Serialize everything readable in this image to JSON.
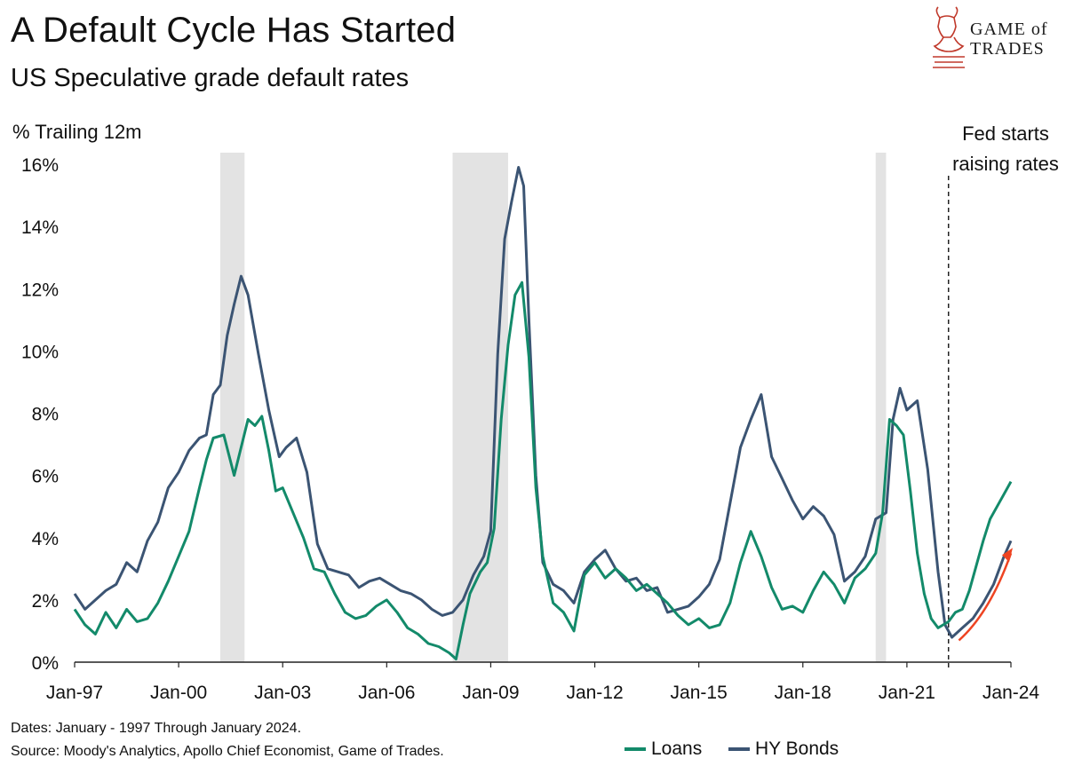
{
  "header": {
    "title": "A Default Cycle Has Started",
    "subtitle": "US Speculative grade default rates"
  },
  "logo": {
    "line1": "GAME of",
    "line2": "TRADES",
    "color": "#c0392b"
  },
  "annotation": {
    "line1": "Fed starts",
    "line2": "raising rates"
  },
  "footer": {
    "dates": "Dates: January - 1997 Through January 2024.",
    "source": "Source: Moody's Analytics, Apollo Chief Economist, Game of Trades."
  },
  "colors": {
    "loans": "#138a6a",
    "hy_bonds": "#3b5473",
    "recession": "#e3e3e3",
    "arrow": "#ee4422"
  },
  "chart_data": {
    "type": "line",
    "title": "A Default Cycle Has Started",
    "subtitle": "US Speculative grade default rates",
    "ylabel": "% Trailing 12m",
    "xlim": [
      1997.0,
      2024.0
    ],
    "ylim": [
      0,
      16
    ],
    "y_ticks": [
      "0%",
      "2%",
      "4%",
      "6%",
      "8%",
      "10%",
      "12%",
      "14%",
      "16%"
    ],
    "x_ticks": [
      "Jan-97",
      "Jan-00",
      "Jan-03",
      "Jan-06",
      "Jan-09",
      "Jan-12",
      "Jan-15",
      "Jan-18",
      "Jan-21",
      "Jan-24"
    ],
    "legend": {
      "position": "bottom-right",
      "entries": [
        "Loans",
        "HY Bonds"
      ]
    },
    "grid": false,
    "recessions": [
      [
        2001.2,
        2001.9
      ],
      [
        2007.9,
        2009.5
      ],
      [
        2020.1,
        2020.4
      ]
    ],
    "fed_start": 2022.2,
    "series": [
      {
        "name": "Loans",
        "x": [
          1997.0,
          1997.3,
          1997.6,
          1997.9,
          1998.2,
          1998.5,
          1998.8,
          1999.1,
          1999.4,
          1999.7,
          2000.0,
          2000.3,
          2000.6,
          2000.8,
          2001.0,
          2001.3,
          2001.6,
          2001.8,
          2002.0,
          2002.2,
          2002.4,
          2002.6,
          2002.8,
          2003.0,
          2003.3,
          2003.6,
          2003.9,
          2004.2,
          2004.5,
          2004.8,
          2005.1,
          2005.4,
          2005.7,
          2006.0,
          2006.3,
          2006.6,
          2006.9,
          2007.2,
          2007.5,
          2007.8,
          2008.0,
          2008.2,
          2008.4,
          2008.7,
          2008.9,
          2009.1,
          2009.3,
          2009.5,
          2009.7,
          2009.9,
          2010.1,
          2010.3,
          2010.5,
          2010.8,
          2011.1,
          2011.4,
          2011.7,
          2012.0,
          2012.3,
          2012.6,
          2012.9,
          2013.2,
          2013.5,
          2013.8,
          2014.1,
          2014.4,
          2014.7,
          2015.0,
          2015.3,
          2015.6,
          2015.9,
          2016.2,
          2016.5,
          2016.8,
          2017.1,
          2017.4,
          2017.7,
          2018.0,
          2018.3,
          2018.6,
          2018.9,
          2019.2,
          2019.5,
          2019.8,
          2020.1,
          2020.3,
          2020.5,
          2020.7,
          2020.9,
          2021.1,
          2021.3,
          2021.5,
          2021.7,
          2021.9,
          2022.2,
          2022.4,
          2022.6,
          2022.8,
          2023.0,
          2023.2,
          2023.4,
          2023.6,
          2023.8,
          2024.0
        ],
        "values": [
          1.7,
          1.2,
          0.9,
          1.6,
          1.1,
          1.7,
          1.3,
          1.4,
          1.9,
          2.6,
          3.4,
          4.2,
          5.6,
          6.5,
          7.2,
          7.3,
          6.0,
          6.9,
          7.8,
          7.6,
          7.9,
          6.8,
          5.5,
          5.6,
          4.8,
          4.0,
          3.0,
          2.9,
          2.2,
          1.6,
          1.4,
          1.5,
          1.8,
          2.0,
          1.6,
          1.1,
          0.9,
          0.6,
          0.5,
          0.3,
          0.1,
          1.2,
          2.2,
          2.9,
          3.2,
          4.3,
          7.8,
          10.2,
          11.8,
          12.2,
          9.8,
          5.6,
          3.4,
          1.9,
          1.6,
          1.0,
          2.8,
          3.2,
          2.7,
          3.0,
          2.7,
          2.3,
          2.5,
          2.2,
          1.9,
          1.5,
          1.2,
          1.4,
          1.1,
          1.2,
          1.9,
          3.2,
          4.2,
          3.4,
          2.4,
          1.7,
          1.8,
          1.6,
          2.3,
          2.9,
          2.5,
          1.9,
          2.7,
          3.0,
          3.5,
          4.8,
          7.8,
          7.6,
          7.3,
          5.5,
          3.5,
          2.2,
          1.4,
          1.1,
          1.3,
          1.6,
          1.7,
          2.3,
          3.1,
          3.9,
          4.6,
          5.0,
          5.4,
          5.8
        ]
      },
      {
        "name": "HY Bonds",
        "x": [
          1997.0,
          1997.3,
          1997.6,
          1997.9,
          1998.2,
          1998.5,
          1998.8,
          1999.1,
          1999.4,
          1999.7,
          2000.0,
          2000.3,
          2000.6,
          2000.8,
          2001.0,
          2001.2,
          2001.4,
          2001.6,
          2001.8,
          2002.0,
          2002.3,
          2002.6,
          2002.9,
          2003.1,
          2003.4,
          2003.7,
          2004.0,
          2004.3,
          2004.6,
          2004.9,
          2005.2,
          2005.5,
          2005.8,
          2006.1,
          2006.4,
          2006.7,
          2007.0,
          2007.3,
          2007.6,
          2007.9,
          2008.2,
          2008.5,
          2008.8,
          2009.0,
          2009.2,
          2009.4,
          2009.6,
          2009.8,
          2009.95,
          2010.1,
          2010.3,
          2010.5,
          2010.8,
          2011.1,
          2011.4,
          2011.7,
          2012.0,
          2012.3,
          2012.6,
          2012.9,
          2013.2,
          2013.5,
          2013.8,
          2014.1,
          2014.4,
          2014.7,
          2015.0,
          2015.3,
          2015.6,
          2015.9,
          2016.2,
          2016.5,
          2016.8,
          2017.1,
          2017.4,
          2017.7,
          2018.0,
          2018.3,
          2018.6,
          2018.9,
          2019.2,
          2019.5,
          2019.8,
          2020.1,
          2020.4,
          2020.6,
          2020.8,
          2021.0,
          2021.3,
          2021.6,
          2021.9,
          2022.1,
          2022.3,
          2022.6,
          2022.9,
          2023.2,
          2023.5,
          2023.8,
          2024.0
        ],
        "values": [
          2.2,
          1.7,
          2.0,
          2.3,
          2.5,
          3.2,
          2.9,
          3.9,
          4.5,
          5.6,
          6.1,
          6.8,
          7.2,
          7.3,
          8.6,
          8.9,
          10.5,
          11.5,
          12.4,
          11.8,
          9.9,
          8.1,
          6.6,
          6.9,
          7.2,
          6.1,
          3.8,
          3.0,
          2.9,
          2.8,
          2.4,
          2.6,
          2.7,
          2.5,
          2.3,
          2.2,
          2.0,
          1.7,
          1.5,
          1.6,
          2.0,
          2.8,
          3.4,
          4.2,
          9.9,
          13.6,
          14.8,
          15.9,
          15.3,
          11.0,
          6.0,
          3.2,
          2.5,
          2.3,
          1.9,
          2.9,
          3.3,
          3.6,
          3.0,
          2.6,
          2.7,
          2.3,
          2.4,
          1.6,
          1.7,
          1.8,
          2.1,
          2.5,
          3.3,
          5.1,
          6.9,
          7.8,
          8.6,
          6.6,
          5.9,
          5.2,
          4.6,
          5.0,
          4.7,
          4.1,
          2.6,
          2.9,
          3.4,
          4.6,
          4.8,
          7.8,
          8.8,
          8.1,
          8.4,
          6.2,
          2.9,
          1.2,
          0.8,
          1.1,
          1.4,
          1.9,
          2.5,
          3.4,
          3.9
        ]
      }
    ]
  }
}
